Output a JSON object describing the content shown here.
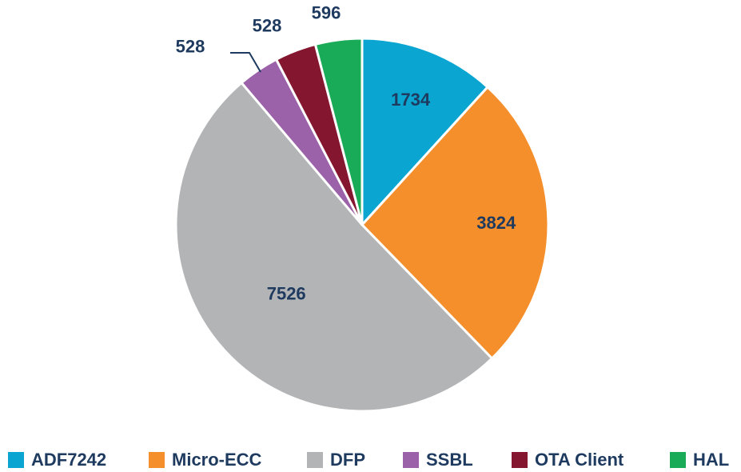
{
  "chart_data": {
    "type": "pie",
    "categories": [
      "ADF7242",
      "Micro-ECC",
      "DFP",
      "SSBL",
      "OTA Client",
      "HAL"
    ],
    "values": [
      1734,
      3824,
      7526,
      528,
      528,
      596
    ],
    "colors": [
      "#0aa6d1",
      "#f58f2c",
      "#b3b4b6",
      "#9b62aa",
      "#84162f",
      "#19ab57"
    ],
    "start_angle_deg": 0,
    "direction": "clockwise",
    "legend_position": "bottom",
    "label_color": "#1e3a5f"
  }
}
